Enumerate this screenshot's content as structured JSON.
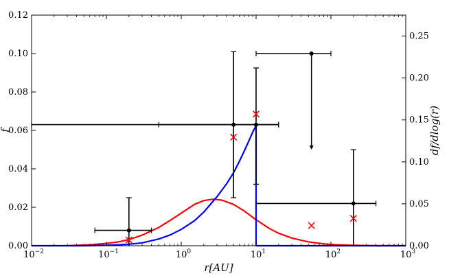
{
  "chart_data": {
    "type": "line",
    "title": "",
    "xlabel": "r[AU]",
    "ylabel_left": "f",
    "ylabel_right": "df/dlog(r)",
    "x_scale": "log",
    "xlim": [
      0.01,
      1000
    ],
    "ylim_left": [
      0,
      0.12
    ],
    "ylim_right": [
      0,
      0.275
    ],
    "grid": false,
    "legend": "none",
    "x_ticks": [
      {
        "value": 0.01,
        "base": "10",
        "exp": "−2"
      },
      {
        "value": 0.1,
        "base": "10",
        "exp": "−1"
      },
      {
        "value": 1,
        "base": "10",
        "exp": "0"
      },
      {
        "value": 10,
        "base": "10",
        "exp": "1"
      },
      {
        "value": 100,
        "base": "10",
        "exp": "2"
      },
      {
        "value": 1000,
        "base": "10",
        "exp": "3"
      }
    ],
    "y_ticks_left": [
      "0.00",
      "0.02",
      "0.04",
      "0.06",
      "0.08",
      "0.10",
      "0.12"
    ],
    "y_ticks_right": [
      "0.00",
      "0.05",
      "0.10",
      "0.15",
      "0.20",
      "0.25"
    ],
    "series": [
      {
        "kind": "curve",
        "color": "#ff0000",
        "x": [
          0.03,
          0.06,
          0.1,
          0.15,
          0.2,
          0.3,
          0.5,
          0.7,
          1.0,
          1.5,
          2.0,
          2.7,
          3.5,
          5.0,
          7.0,
          10,
          15,
          20,
          30,
          50,
          80,
          120,
          200,
          400,
          1000
        ],
        "y": [
          0.0,
          0.0005,
          0.0012,
          0.0021,
          0.0032,
          0.0055,
          0.0095,
          0.013,
          0.017,
          0.0215,
          0.0235,
          0.0242,
          0.0237,
          0.0215,
          0.018,
          0.0135,
          0.009,
          0.0065,
          0.004,
          0.002,
          0.001,
          0.0005,
          0.0002,
          0.0,
          0.0
        ]
      },
      {
        "kind": "curve",
        "color": "#0000ff",
        "x": [
          0.01,
          0.05,
          0.1,
          0.2,
          0.3,
          0.5,
          0.7,
          1.0,
          1.5,
          2.0,
          3.0,
          4.0,
          5.0,
          6.0,
          7.0,
          8.0,
          9.0,
          10,
          10,
          1000
        ],
        "y": [
          0.0,
          0.0,
          0.0002,
          0.0008,
          0.0015,
          0.0035,
          0.0055,
          0.0085,
          0.013,
          0.0175,
          0.0255,
          0.032,
          0.038,
          0.044,
          0.0495,
          0.0545,
          0.059,
          0.0625,
          0.0,
          0.0
        ]
      }
    ],
    "errorbars": [
      {
        "x": 0.2,
        "y": 0.008,
        "xlo": 0.07,
        "xhi": 0.4,
        "ylo": 0.0,
        "yhi": 0.025
      },
      {
        "x": 5.0,
        "y": 0.063,
        "xlo": 0.5,
        "xhi": 20,
        "ylo": 0.025,
        "yhi": 0.101
      },
      {
        "x": 10,
        "y": 0.063,
        "xlo": 0.01,
        "xhi": 20,
        "ylo": 0.032,
        "yhi": 0.0925
      },
      {
        "x": 55,
        "y": 0.1,
        "xlo": 10,
        "xhi": 100,
        "ylo": 0.05,
        "yhi": 0.1,
        "upper_limit": true
      },
      {
        "x": 200,
        "y": 0.022,
        "xlo": 10,
        "xhi": 400,
        "ylo": 0.0,
        "yhi": 0.05
      }
    ],
    "markers": {
      "symbol": "x",
      "color": "#ff0000",
      "points": [
        {
          "x": 0.2,
          "y": 0.003
        },
        {
          "x": 5.0,
          "y": 0.0565
        },
        {
          "x": 10,
          "y": 0.0685
        },
        {
          "x": 55,
          "y": 0.0105
        },
        {
          "x": 200,
          "y": 0.0142
        }
      ]
    }
  }
}
